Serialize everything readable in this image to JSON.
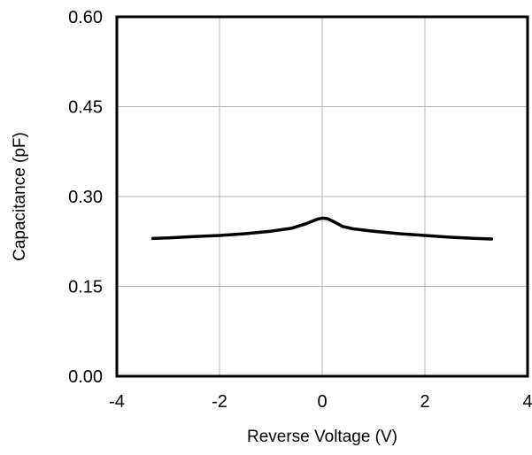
{
  "chart_data": {
    "type": "line",
    "title": "",
    "xlabel": "Reverse Voltage (V)",
    "ylabel": "Capacitance (pF)",
    "xlim": [
      -4,
      4
    ],
    "ylim": [
      0.0,
      0.6
    ],
    "x_ticks": [
      -4,
      -2,
      0,
      2,
      4
    ],
    "x_tick_labels": [
      "-4",
      "-2",
      "0",
      "2",
      "4"
    ],
    "y_ticks": [
      0.0,
      0.15,
      0.3,
      0.45,
      0.6
    ],
    "y_tick_labels": [
      "0.00",
      "0.15",
      "0.30",
      "0.45",
      "0.60"
    ],
    "grid": true,
    "legend": "none",
    "series": [
      {
        "color": "#000000",
        "x": [
          -3.3,
          -3.0,
          -2.5,
          -2.0,
          -1.5,
          -1.0,
          -0.6,
          -0.3,
          -0.1,
          0.0,
          0.1,
          0.2,
          0.4,
          0.6,
          1.0,
          1.5,
          2.0,
          2.5,
          3.0,
          3.3
        ],
        "y": [
          0.23,
          0.231,
          0.233,
          0.235,
          0.238,
          0.242,
          0.247,
          0.255,
          0.262,
          0.264,
          0.263,
          0.259,
          0.25,
          0.246,
          0.242,
          0.238,
          0.235,
          0.232,
          0.23,
          0.229
        ]
      }
    ]
  }
}
